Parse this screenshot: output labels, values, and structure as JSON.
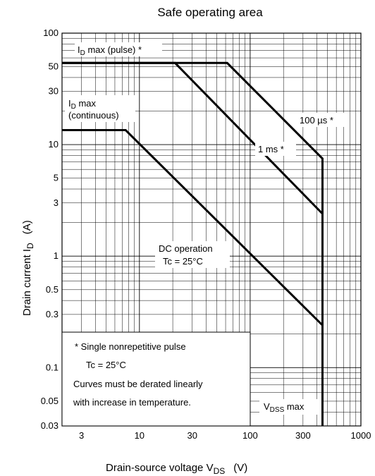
{
  "chart_data": {
    "type": "line",
    "title": "Safe operating area",
    "xlabel": {
      "main": "Drain-source voltage  V",
      "sub": "DS",
      "unit": "(V)"
    },
    "ylabel": {
      "main": "Drain current  I",
      "sub": "D",
      "unit": "(A)"
    },
    "x_scale": "log",
    "y_scale": "log",
    "xlim": [
      2,
      1000
    ],
    "ylim": [
      0.03,
      100
    ],
    "x_ticks": [
      3,
      10,
      30,
      100,
      300,
      1000
    ],
    "x_tick_labels": [
      "3",
      "10",
      "30",
      "100",
      "300",
      "1000"
    ],
    "y_ticks": [
      100,
      50,
      30,
      10,
      5,
      3,
      1,
      0.5,
      0.3,
      0.1,
      0.05,
      0.03
    ],
    "y_tick_labels": [
      "100",
      "50",
      "30",
      "10",
      "5",
      "3",
      "1",
      "0.5",
      "0.3",
      "0.1",
      "0.05",
      "0.03"
    ],
    "grid": true,
    "series": [
      {
        "name": "100 µs *",
        "x": [
          2,
          62,
          450,
          450
        ],
        "y": [
          54,
          54,
          7.5,
          0.03
        ]
      },
      {
        "name": "1 ms *",
        "x": [
          2,
          21,
          450,
          450
        ],
        "y": [
          54,
          54,
          2.4,
          0.03
        ]
      },
      {
        "name": "DC operation",
        "x": [
          2,
          7.5,
          450,
          450
        ],
        "y": [
          13.5,
          13.5,
          0.24,
          0.03
        ]
      }
    ],
    "annotations": {
      "id_pulse": {
        "main": "I",
        "sub": "D",
        "rest": " max (pulse) *"
      },
      "id_cont_1": {
        "main": "I",
        "sub": "D",
        "rest": " max"
      },
      "id_cont_2": "(continuous)",
      "us100": "100 µs *",
      "ms1": "1 ms *",
      "dc_1": "DC operation",
      "dc_2": "Tc = 25°C",
      "vdss": {
        "main": "V",
        "sub": "DSS",
        "rest": " max"
      }
    },
    "note": [
      "* Single nonrepetitive pulse",
      "Tc = 25°C",
      "Curves must be derated linearly",
      "with increase in temperature."
    ]
  }
}
